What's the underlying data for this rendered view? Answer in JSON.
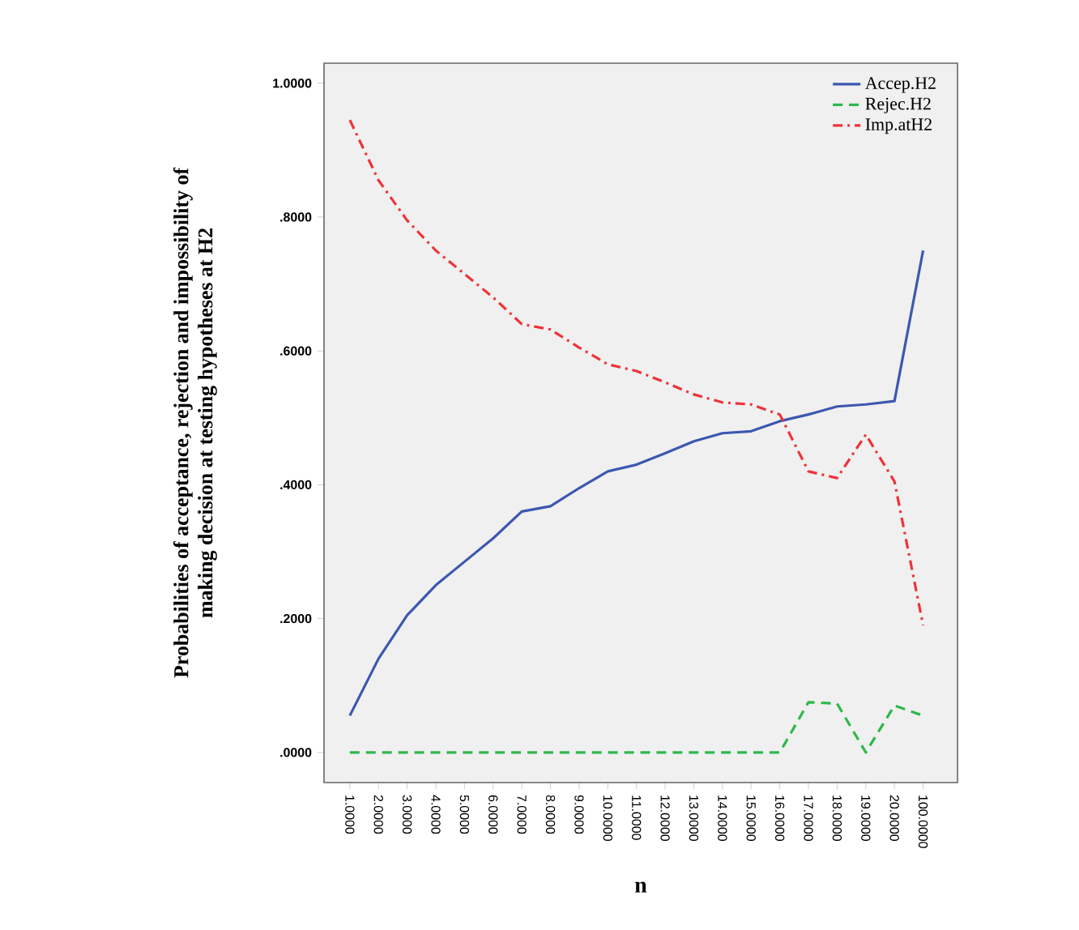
{
  "chart_data": {
    "type": "line",
    "xlabel": "n",
    "ylabel": "Probabilities of acceptance, rejection and impossibility of making decision at testing hypotheses at H2",
    "categories": [
      "1.0000",
      "2.0000",
      "3.0000",
      "4.0000",
      "5.0000",
      "6.0000",
      "7.0000",
      "8.0000",
      "9.0000",
      "10.0000",
      "11.0000",
      "12.0000",
      "13.0000",
      "14.0000",
      "15.0000",
      "16.0000",
      "17.0000",
      "18.0000",
      "19.0000",
      "20.0000",
      "100.0000"
    ],
    "series": [
      {
        "name": "Accep.H2",
        "color": "#3c58b0",
        "line_style": "solid",
        "values": [
          0.055,
          0.14,
          0.205,
          0.25,
          0.285,
          0.32,
          0.36,
          0.368,
          0.395,
          0.42,
          0.43,
          0.447,
          0.465,
          0.477,
          0.48,
          0.495,
          0.505,
          0.517,
          0.52,
          0.525,
          0.75
        ]
      },
      {
        "name": "Rejec.H2",
        "color": "#2db84a",
        "line_style": "dashed",
        "values": [
          0,
          0,
          0,
          0,
          0,
          0,
          0,
          0,
          0,
          0,
          0,
          0,
          0,
          0,
          0,
          0,
          0.075,
          0.073,
          0,
          0.07,
          0.055
        ]
      },
      {
        "name": "Imp.atH2",
        "color": "#ee3338",
        "line_style": "dashdot",
        "values": [
          0.945,
          0.855,
          0.795,
          0.75,
          0.715,
          0.68,
          0.64,
          0.632,
          0.605,
          0.58,
          0.57,
          0.553,
          0.535,
          0.523,
          0.52,
          0.505,
          0.42,
          0.41,
          0.475,
          0.405,
          0.19
        ]
      }
    ],
    "ylim": [
      -0.045,
      1.03
    ],
    "yticks": [
      {
        "value": 0,
        "label": ".0000"
      },
      {
        "value": 0.2,
        "label": ".2000"
      },
      {
        "value": 0.4,
        "label": ".4000"
      },
      {
        "value": 0.6,
        "label": ".6000"
      },
      {
        "value": 0.8,
        "label": ".8000"
      },
      {
        "value": 1.0,
        "label": "1.0000"
      }
    ],
    "legend": "top right",
    "grid": false,
    "marker": "none"
  }
}
